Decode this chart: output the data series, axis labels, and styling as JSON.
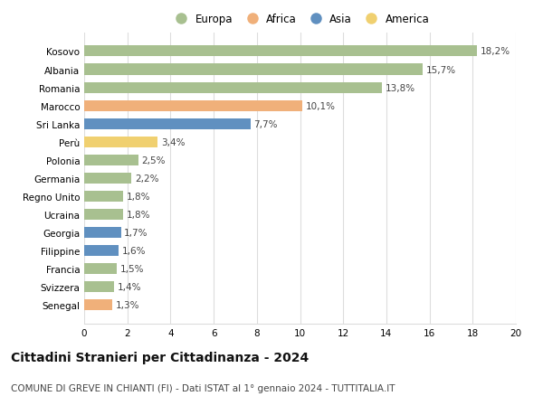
{
  "countries": [
    "Kosovo",
    "Albania",
    "Romania",
    "Marocco",
    "Sri Lanka",
    "Perù",
    "Polonia",
    "Germania",
    "Regno Unito",
    "Ucraina",
    "Georgia",
    "Filippine",
    "Francia",
    "Svizzera",
    "Senegal"
  ],
  "values": [
    18.2,
    15.7,
    13.8,
    10.1,
    7.7,
    3.4,
    2.5,
    2.2,
    1.8,
    1.8,
    1.7,
    1.6,
    1.5,
    1.4,
    1.3
  ],
  "continents": [
    "Europa",
    "Europa",
    "Europa",
    "Africa",
    "Asia",
    "America",
    "Europa",
    "Europa",
    "Europa",
    "Europa",
    "Asia",
    "Asia",
    "Europa",
    "Europa",
    "Africa"
  ],
  "continent_colors": {
    "Europa": "#a8c090",
    "Africa": "#f0b07a",
    "Asia": "#6090c0",
    "America": "#f0d070"
  },
  "legend_order": [
    "Europa",
    "Africa",
    "Asia",
    "America"
  ],
  "title": "Cittadini Stranieri per Cittadinanza - 2024",
  "subtitle": "COMUNE DI GREVE IN CHIANTI (FI) - Dati ISTAT al 1° gennaio 2024 - TUTTITALIA.IT",
  "xlim": [
    0,
    20
  ],
  "xticks": [
    0,
    2,
    4,
    6,
    8,
    10,
    12,
    14,
    16,
    18,
    20
  ],
  "bg_color": "#ffffff",
  "grid_color": "#dddddd",
  "bar_height": 0.6,
  "label_fontsize": 7.5,
  "title_fontsize": 10,
  "subtitle_fontsize": 7.5,
  "tick_fontsize": 7.5,
  "legend_fontsize": 8.5
}
